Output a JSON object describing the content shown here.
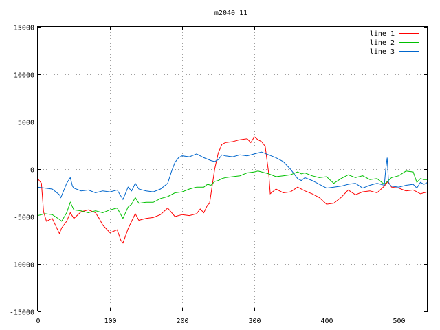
{
  "chart_data": {
    "type": "line",
    "title": "m2040_11",
    "xlabel": "",
    "ylabel": "",
    "xlim": [
      0,
      540
    ],
    "ylim": [
      -15000,
      15000
    ],
    "xticks": [
      0,
      100,
      200,
      300,
      400,
      500
    ],
    "yticks": [
      -15000,
      -10000,
      -5000,
      0,
      5000,
      10000,
      15000
    ],
    "xtick_labels": [
      "0",
      "100",
      "200",
      "300",
      "400",
      "500"
    ],
    "ytick_labels": [
      "-15000",
      "-10000",
      "-5000",
      "0",
      "5000",
      "10000",
      "15000"
    ],
    "grid": true,
    "legend_position": "top-right",
    "series": [
      {
        "name": "line 1",
        "color": "#ff0000",
        "x": [
          0,
          5,
          8,
          12,
          20,
          30,
          33,
          40,
          45,
          50,
          60,
          70,
          80,
          85,
          90,
          100,
          110,
          115,
          118,
          125,
          130,
          135,
          140,
          150,
          160,
          170,
          180,
          190,
          200,
          210,
          220,
          225,
          230,
          235,
          238,
          245,
          250,
          255,
          260,
          270,
          280,
          290,
          295,
          300,
          305,
          310,
          315,
          320,
          322,
          330,
          340,
          350,
          360,
          370,
          380,
          390,
          400,
          410,
          420,
          430,
          440,
          450,
          460,
          470,
          480,
          485,
          490,
          500,
          510,
          520,
          525,
          530,
          535,
          540
        ],
        "y": [
          -1000,
          -1500,
          -4500,
          -5500,
          -5200,
          -6800,
          -6200,
          -5500,
          -4600,
          -5200,
          -4500,
          -4300,
          -4600,
          -5200,
          -5900,
          -6700,
          -6400,
          -7500,
          -7800,
          -6300,
          -5500,
          -4700,
          -5400,
          -5200,
          -5100,
          -4800,
          -4100,
          -5000,
          -4800,
          -4900,
          -4700,
          -4200,
          -4600,
          -3800,
          -3600,
          0,
          1700,
          2600,
          2800,
          2900,
          3100,
          3200,
          2800,
          3400,
          3100,
          2900,
          2400,
          -500,
          -2600,
          -2100,
          -2500,
          -2400,
          -1900,
          -2300,
          -2600,
          -3000,
          -3700,
          -3600,
          -3000,
          -2200,
          -2700,
          -2400,
          -2300,
          -2500,
          -1800,
          -1300,
          -1900,
          -2000,
          -2300,
          -2200,
          -2400,
          -2600,
          -2500,
          -2400
        ]
      },
      {
        "name": "line 2",
        "color": "#00c000",
        "x": [
          0,
          10,
          20,
          30,
          33,
          40,
          45,
          50,
          60,
          70,
          80,
          90,
          100,
          110,
          118,
          125,
          130,
          135,
          140,
          150,
          160,
          170,
          180,
          190,
          200,
          210,
          220,
          230,
          235,
          240,
          245,
          250,
          255,
          260,
          270,
          280,
          290,
          300,
          305,
          310,
          320,
          330,
          340,
          350,
          360,
          365,
          370,
          380,
          390,
          400,
          410,
          420,
          430,
          440,
          450,
          460,
          470,
          480,
          490,
          500,
          510,
          520,
          525,
          530,
          535,
          540
        ],
        "y": [
          -4900,
          -4700,
          -4800,
          -5300,
          -5500,
          -4600,
          -3500,
          -4300,
          -4400,
          -4600,
          -4400,
          -4600,
          -4300,
          -4100,
          -5200,
          -4000,
          -3700,
          -3000,
          -3600,
          -3500,
          -3500,
          -3100,
          -2900,
          -2500,
          -2400,
          -2100,
          -1900,
          -1900,
          -1600,
          -1700,
          -1300,
          -1200,
          -1000,
          -900,
          -800,
          -700,
          -400,
          -300,
          -200,
          -300,
          -500,
          -800,
          -700,
          -600,
          -300,
          -500,
          -400,
          -700,
          -900,
          -800,
          -1500,
          -1000,
          -600,
          -900,
          -700,
          -1100,
          -1000,
          -1600,
          -900,
          -700,
          -200,
          -300,
          -1400,
          -1000,
          -1100,
          -1100
        ]
      },
      {
        "name": "line 3",
        "color": "#0066cc",
        "x": [
          0,
          10,
          20,
          30,
          32,
          40,
          45,
          48,
          50,
          60,
          70,
          80,
          90,
          100,
          110,
          118,
          125,
          130,
          135,
          140,
          150,
          160,
          170,
          180,
          185,
          190,
          195,
          200,
          210,
          220,
          230,
          240,
          245,
          250,
          255,
          260,
          270,
          280,
          290,
          300,
          310,
          320,
          330,
          340,
          350,
          360,
          365,
          370,
          380,
          390,
          400,
          410,
          420,
          430,
          440,
          450,
          460,
          470,
          480,
          482,
          484,
          486,
          490,
          500,
          510,
          520,
          525,
          530,
          535,
          540
        ],
        "y": [
          -1900,
          -2000,
          -2100,
          -2700,
          -3000,
          -1500,
          -900,
          -1800,
          -2000,
          -2300,
          -2200,
          -2500,
          -2300,
          -2400,
          -2200,
          -3200,
          -1900,
          -2300,
          -1500,
          -2100,
          -2300,
          -2400,
          -2100,
          -1500,
          -300,
          700,
          1200,
          1400,
          1300,
          1600,
          1200,
          900,
          800,
          1000,
          1500,
          1400,
          1300,
          1500,
          1400,
          1600,
          1800,
          1500,
          1200,
          800,
          0,
          -1000,
          -1200,
          -900,
          -1200,
          -1600,
          -2000,
          -1900,
          -1800,
          -1600,
          -1500,
          -2000,
          -1700,
          -1500,
          -1700,
          0,
          1200,
          -1500,
          -1800,
          -1900,
          -1700,
          -1600,
          -2000,
          -1400,
          -1600,
          -1400
        ]
      }
    ]
  }
}
